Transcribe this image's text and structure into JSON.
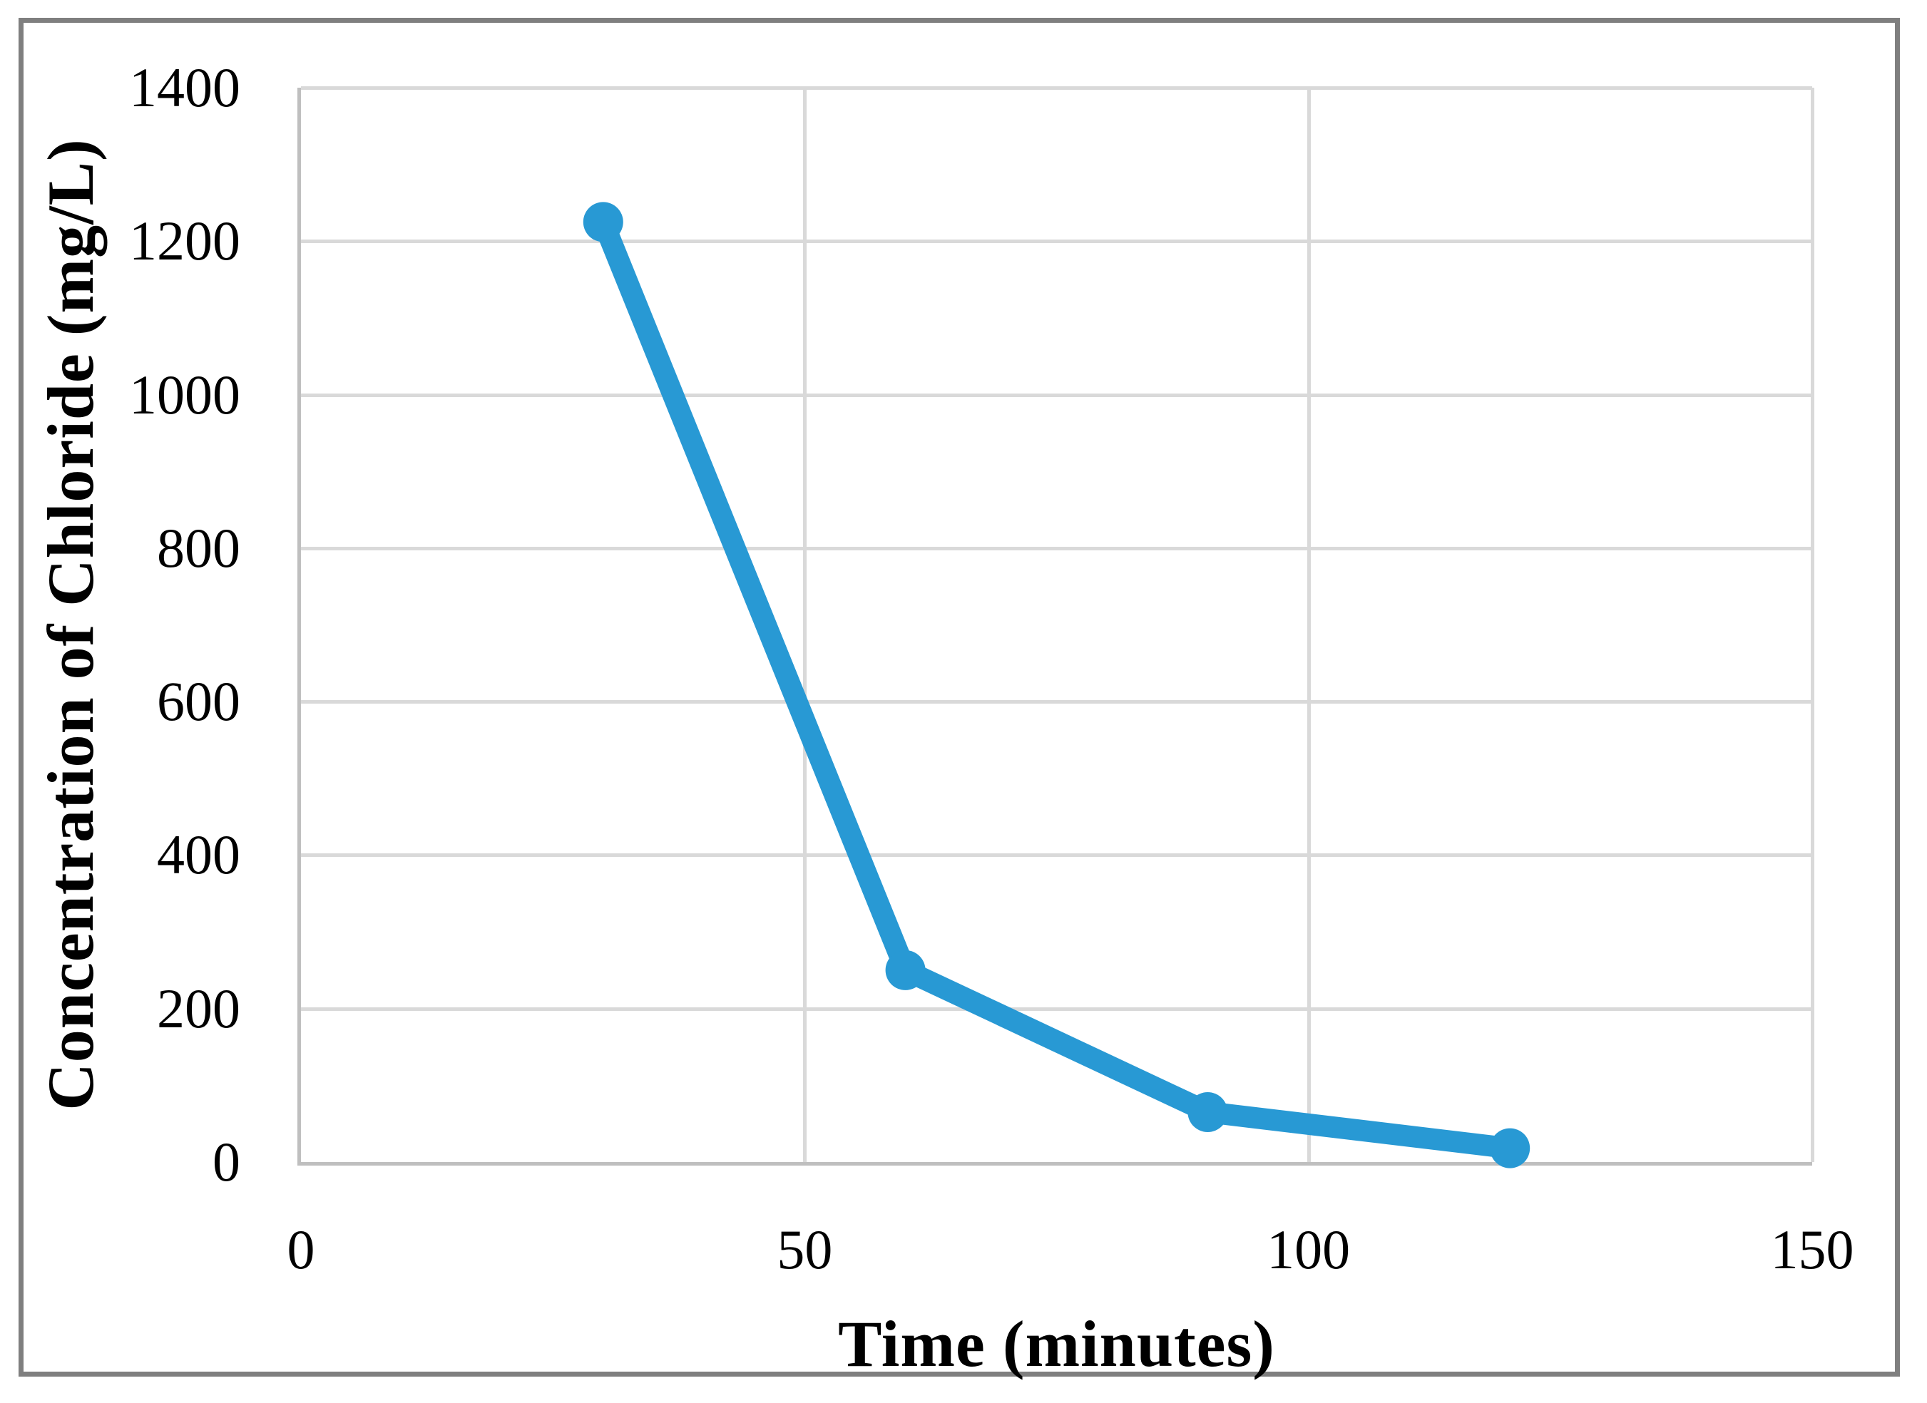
{
  "figure": {
    "background_color": "#FFFFFF",
    "frame_border_color": "#7F7F7F"
  },
  "chart_data": {
    "type": "line",
    "title": "",
    "xlabel": "Time (minutes)",
    "ylabel": "Concentration of Chloride (mg/L)",
    "x": [
      30,
      60,
      90,
      120
    ],
    "y": [
      1225,
      250,
      65,
      18
    ],
    "series": [
      {
        "name": "Concentration of Chloride",
        "x": [
          30,
          60,
          90,
          120
        ],
        "values": [
          1225,
          250,
          65,
          18
        ]
      }
    ],
    "xlim": [
      0,
      150
    ],
    "ylim": [
      0,
      1400
    ],
    "x_ticks": [
      0,
      50,
      100,
      150
    ],
    "y_ticks": [
      0,
      200,
      400,
      600,
      800,
      1000,
      1200,
      1400
    ],
    "grid": true,
    "legend_position": "none",
    "line_color": "#2899D4",
    "marker": "circle",
    "marker_color": "#2899D4",
    "gridline_color": "#D9D9D9",
    "axis_line_color": "#BFBFBF",
    "tick_label_color": "#000000"
  }
}
